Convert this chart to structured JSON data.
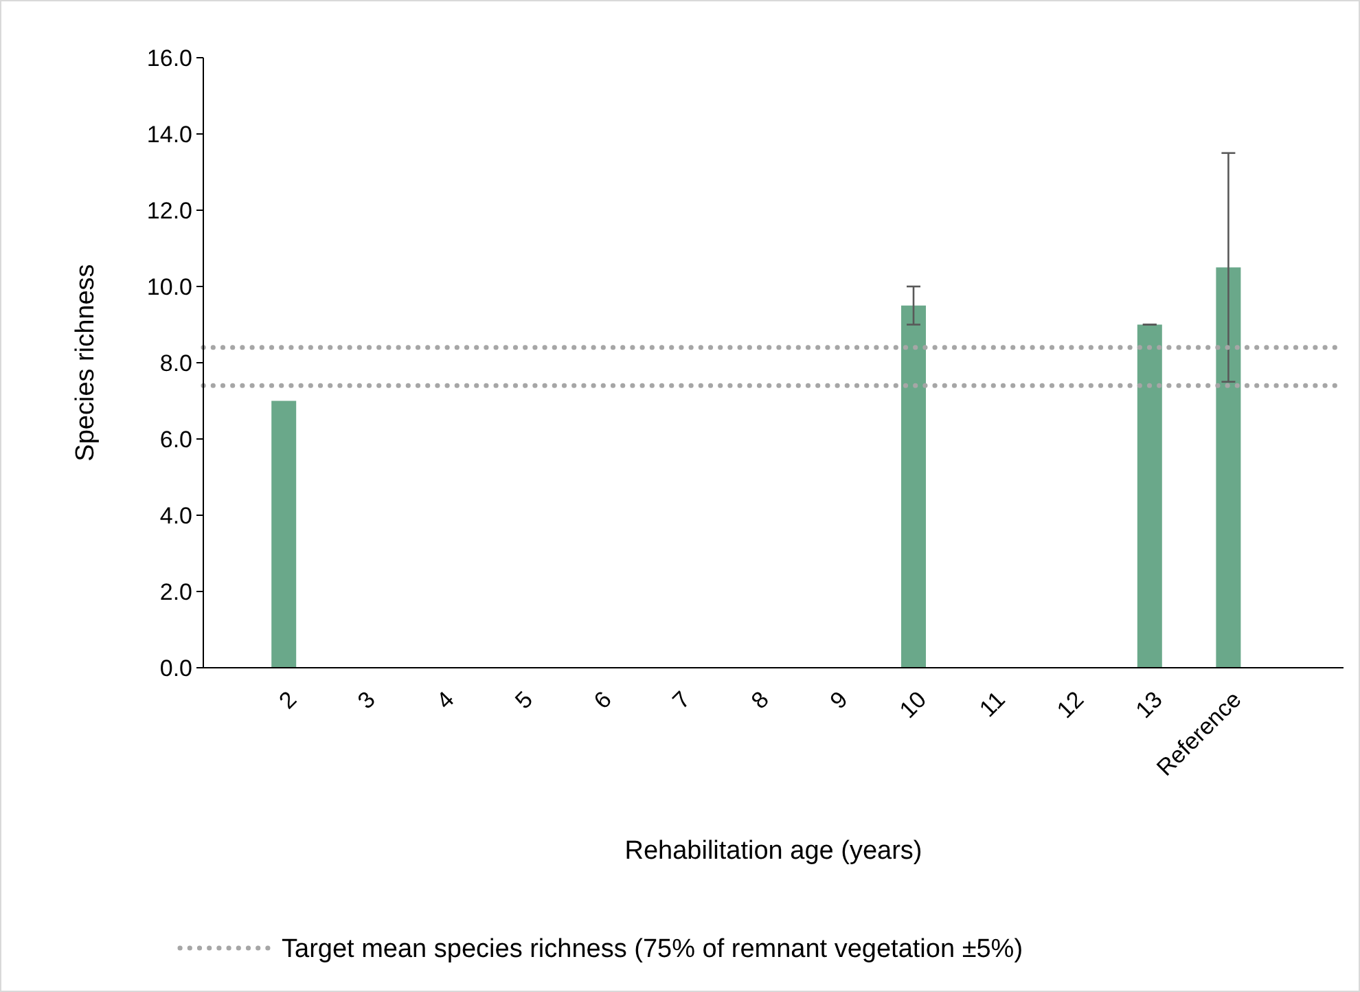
{
  "chart_data": {
    "type": "bar",
    "xlabel": "Rehabilitation age (years)",
    "ylabel": "Species richness",
    "categories": [
      "2",
      "3",
      "4",
      "5",
      "6",
      "7",
      "8",
      "9",
      "10",
      "11",
      "12",
      "13",
      "Reference"
    ],
    "series": [
      {
        "color": "#6aa88a",
        "values": [
          7.0,
          null,
          null,
          null,
          null,
          null,
          null,
          null,
          9.5,
          null,
          null,
          9.0,
          10.5
        ],
        "errors": [
          null,
          null,
          null,
          null,
          null,
          null,
          null,
          null,
          0.5,
          null,
          null,
          0,
          3.0
        ]
      }
    ],
    "ylim": [
      0,
      16
    ],
    "yticks": [
      {
        "value": 0,
        "label": "0.0"
      },
      {
        "value": 2,
        "label": "2.0"
      },
      {
        "value": 4,
        "label": "4.0"
      },
      {
        "value": 6,
        "label": "6.0"
      },
      {
        "value": 8,
        "label": "8.0"
      },
      {
        "value": 10,
        "label": "10.0"
      },
      {
        "value": 12,
        "label": "12.0"
      },
      {
        "value": 14,
        "label": "14.0"
      },
      {
        "value": 16,
        "label": "16.0"
      }
    ],
    "ref_lines": [
      {
        "axis": "y",
        "value": 8.4,
        "label": "Target mean species richness (75% of remnant vegetation ±5%)",
        "color": "#a6a6a6",
        "line_style": "dotted"
      },
      {
        "axis": "y",
        "value": 7.4,
        "color": "#a6a6a6",
        "line_style": "dotted"
      }
    ],
    "grid": false,
    "legend": "bottom"
  }
}
